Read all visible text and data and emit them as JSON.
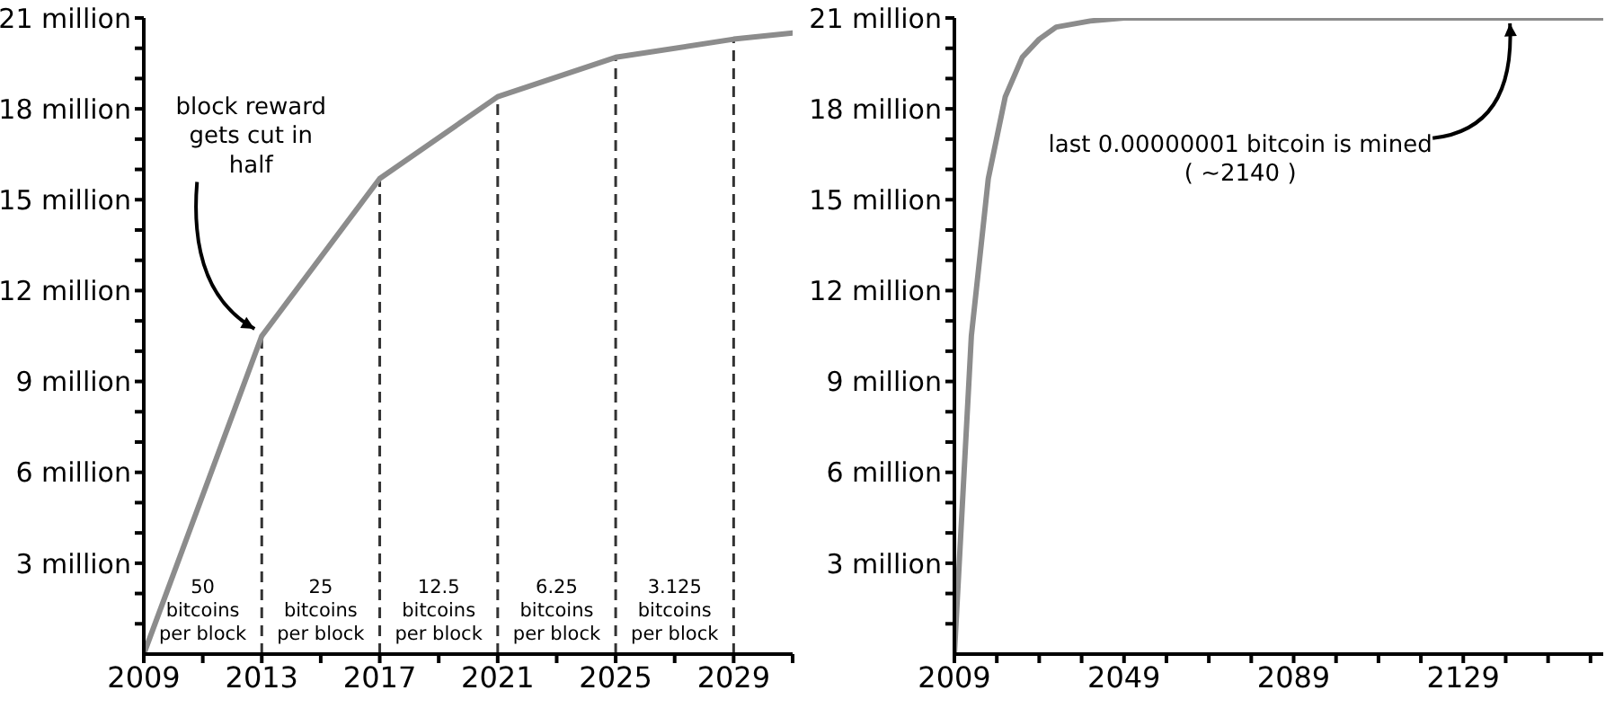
{
  "chart_data": [
    {
      "type": "line",
      "x": [
        2009,
        2013,
        2017,
        2021,
        2025,
        2029,
        2031
      ],
      "series": [
        {
          "color": "#8c8c8c",
          "values": [
            0,
            10.5,
            15.7,
            18.4,
            19.7,
            20.3,
            20.5
          ]
        }
      ],
      "xlim": [
        2009,
        2031
      ],
      "xticks": [
        2009,
        {
          "value": 2011,
          "label": null
        },
        2013,
        {
          "value": 2015,
          "label": null
        },
        2017,
        {
          "value": 2019,
          "label": null
        },
        2021,
        {
          "value": 2023,
          "label": null
        },
        2025,
        {
          "value": 2027,
          "label": null
        },
        2029,
        {
          "value": 2031,
          "label": null
        }
      ],
      "ylim": [
        0,
        21
      ],
      "yticks": [
        {
          "value": 1,
          "label": null
        },
        {
          "value": 2,
          "label": null
        },
        {
          "value": 3,
          "label": "3 million"
        },
        {
          "value": 4,
          "label": null
        },
        {
          "value": 5,
          "label": null
        },
        {
          "value": 6,
          "label": "6 million"
        },
        {
          "value": 7,
          "label": null
        },
        {
          "value": 8,
          "label": null
        },
        {
          "value": 9,
          "label": "9 million"
        },
        {
          "value": 10,
          "label": null
        },
        {
          "value": 11,
          "label": null
        },
        {
          "value": 12,
          "label": "12 million"
        },
        {
          "value": 13,
          "label": null
        },
        {
          "value": 14,
          "label": null
        },
        {
          "value": 15,
          "label": "15 million"
        },
        {
          "value": 16,
          "label": null
        },
        {
          "value": 17,
          "label": null
        },
        {
          "value": 18,
          "label": "18 million"
        },
        {
          "value": 19,
          "label": null
        },
        {
          "value": 20,
          "label": null
        },
        {
          "value": 21,
          "label": "21 million"
        }
      ],
      "ref_lines": [
        {
          "axis": "x",
          "value": 2013,
          "color": "#333333",
          "line_style": "dashed"
        },
        {
          "axis": "x",
          "value": 2017,
          "color": "#333333",
          "line_style": "dashed"
        },
        {
          "axis": "x",
          "value": 2021,
          "color": "#333333",
          "line_style": "dashed"
        },
        {
          "axis": "x",
          "value": 2025,
          "color": "#333333",
          "line_style": "dashed"
        },
        {
          "axis": "x",
          "value": 2029,
          "color": "#333333",
          "line_style": "dashed"
        }
      ],
      "annotations": [
        {
          "text": "block reward gets cut in half",
          "x": 2013,
          "y": 10.5
        },
        "50 bitcoins per block",
        "25 bitcoins per block",
        "12.5 bitcoins per block",
        "6.25 bitcoins per block",
        "3.125 bitcoins per block"
      ],
      "grid": false,
      "legend": false,
      "marker": "none",
      "line_style": "solid"
    },
    {
      "type": "line",
      "x": [
        2009,
        2013,
        2017,
        2021,
        2025,
        2029,
        2033,
        2041,
        2049,
        2089,
        2140,
        2162
      ],
      "series": [
        {
          "color": "#8c8c8c",
          "values": [
            0,
            10.5,
            15.7,
            18.4,
            19.7,
            20.3,
            20.7,
            20.9,
            21,
            21,
            21,
            21
          ]
        }
      ],
      "xlim": [
        2009,
        2162
      ],
      "xticks": [
        2009,
        {
          "value": 2019,
          "label": null
        },
        {
          "value": 2029,
          "label": null
        },
        {
          "value": 2039,
          "label": null
        },
        2049,
        {
          "value": 2059,
          "label": null
        },
        {
          "value": 2069,
          "label": null
        },
        {
          "value": 2079,
          "label": null
        },
        2089,
        {
          "value": 2099,
          "label": null
        },
        {
          "value": 2109,
          "label": null
        },
        {
          "value": 2119,
          "label": null
        },
        2129,
        {
          "value": 2139,
          "label": null
        },
        {
          "value": 2149,
          "label": null
        },
        {
          "value": 2159,
          "label": null
        }
      ],
      "ylim": [
        0,
        21
      ],
      "yticks": [
        {
          "value": 1,
          "label": null
        },
        {
          "value": 2,
          "label": null
        },
        {
          "value": 3,
          "label": "3 million"
        },
        {
          "value": 4,
          "label": null
        },
        {
          "value": 5,
          "label": null
        },
        {
          "value": 6,
          "label": "6 million"
        },
        {
          "value": 7,
          "label": null
        },
        {
          "value": 8,
          "label": null
        },
        {
          "value": 9,
          "label": "9 million"
        },
        {
          "value": 10,
          "label": null
        },
        {
          "value": 11,
          "label": null
        },
        {
          "value": 12,
          "label": "12 million"
        },
        {
          "value": 13,
          "label": null
        },
        {
          "value": 14,
          "label": null
        },
        {
          "value": 15,
          "label": "15 million"
        },
        {
          "value": 16,
          "label": null
        },
        {
          "value": 17,
          "label": null
        },
        {
          "value": 18,
          "label": "18 million"
        },
        {
          "value": 19,
          "label": null
        },
        {
          "value": 20,
          "label": null
        },
        {
          "value": 21,
          "label": "21 million"
        }
      ],
      "annotations": [
        {
          "text": "last 0.00000001 bitcoin is mined ( ~2140 )",
          "x": 2140,
          "y": 21
        }
      ],
      "grid": false,
      "legend": false,
      "marker": "none",
      "line_style": "solid"
    }
  ]
}
